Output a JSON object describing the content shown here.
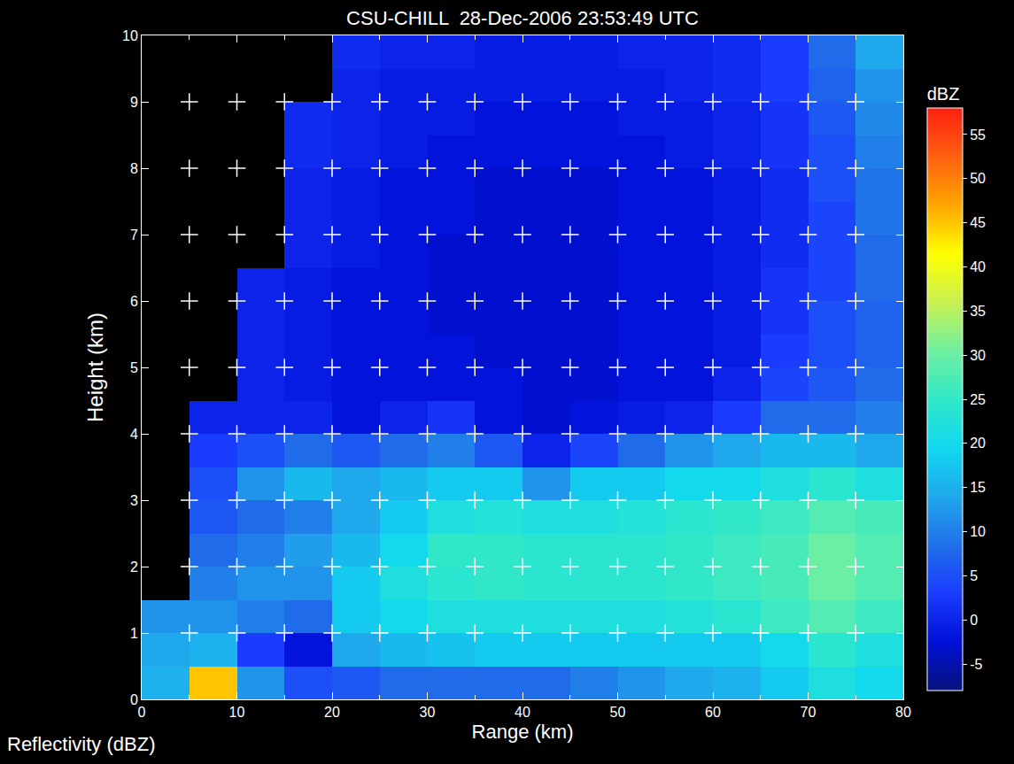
{
  "chart_data": {
    "type": "heatmap",
    "title": "CSU-CHILL  28-Dec-2006 23:53:49 UTC",
    "annotations": [
      "Reflectivity (dBZ)"
    ],
    "x_label": "Range (km)",
    "y_label": "Height (km)",
    "x": [
      2.5,
      7.5,
      12.5,
      17.5,
      22.5,
      27.5,
      32.5,
      37.5,
      42.5,
      47.5,
      52.5,
      57.5,
      62.5,
      67.5,
      72.5,
      77.5
    ],
    "y": [
      0.25,
      0.75,
      1.25,
      1.75,
      2.25,
      2.75,
      3.25,
      3.75,
      4.25,
      4.75,
      5.25,
      5.75,
      6.25,
      6.75,
      7.25,
      7.75,
      8.25,
      8.75,
      9.25,
      9.75
    ],
    "values": [
      [
        15,
        45,
        12,
        5,
        6,
        8,
        8,
        8,
        8,
        10,
        12,
        14,
        15,
        18,
        22,
        20
      ],
      [
        14,
        15,
        3,
        -2,
        14,
        16,
        17,
        18,
        18,
        18,
        18,
        18,
        18,
        20,
        24,
        22
      ],
      [
        12,
        12,
        10,
        8,
        18,
        20,
        22,
        22,
        22,
        22,
        22,
        23,
        24,
        26,
        28,
        26
      ],
      [
        null,
        10,
        12,
        12,
        18,
        22,
        24,
        25,
        24,
        24,
        24,
        25,
        26,
        27,
        30,
        28
      ],
      [
        null,
        8,
        10,
        13,
        16,
        20,
        25,
        25,
        24,
        24,
        24,
        25,
        26,
        27,
        30,
        28
      ],
      [
        null,
        6,
        8,
        10,
        14,
        18,
        22,
        23,
        22,
        22,
        23,
        24,
        25,
        26,
        28,
        27
      ],
      [
        null,
        5,
        12,
        16,
        14,
        16,
        18,
        18,
        12,
        18,
        18,
        20,
        20,
        22,
        24,
        22
      ],
      [
        null,
        3,
        5,
        8,
        6,
        8,
        10,
        6,
        0,
        4,
        8,
        12,
        14,
        16,
        16,
        14
      ],
      [
        null,
        0,
        0,
        0,
        -2,
        0,
        2,
        -2,
        -3,
        -2,
        -1,
        0,
        3,
        8,
        8,
        10
      ],
      [
        null,
        null,
        0,
        -1,
        -2,
        -2,
        -2,
        -2,
        -3,
        -3,
        -2,
        -2,
        0,
        4,
        6,
        8
      ],
      [
        null,
        null,
        0,
        -1,
        -2,
        -2,
        -2,
        -3,
        -3,
        -3,
        -2,
        -2,
        -1,
        3,
        5,
        7
      ],
      [
        null,
        null,
        0,
        -1,
        -2,
        -2,
        -3,
        -3,
        -3,
        -3,
        -2,
        -2,
        -1,
        2,
        5,
        7
      ],
      [
        null,
        null,
        0,
        -1,
        -2,
        -2,
        -3,
        -3,
        -3,
        -3,
        -2,
        -2,
        -1,
        2,
        4,
        8
      ],
      [
        null,
        null,
        null,
        0,
        -1,
        -2,
        -3,
        -3,
        -3,
        -3,
        -2,
        -2,
        -1,
        1,
        4,
        8
      ],
      [
        null,
        null,
        null,
        0,
        -1,
        -2,
        -2,
        -3,
        -3,
        -3,
        -2,
        -2,
        -1,
        1,
        4,
        9
      ],
      [
        null,
        null,
        null,
        0,
        -1,
        -2,
        -2,
        -3,
        -3,
        -3,
        -2,
        -2,
        -1,
        1,
        5,
        9
      ],
      [
        null,
        null,
        null,
        1,
        0,
        -1,
        -2,
        -2,
        -2,
        -2,
        -2,
        -1,
        0,
        2,
        5,
        10
      ],
      [
        null,
        null,
        null,
        1,
        0,
        -1,
        -1,
        -2,
        -2,
        -2,
        -1,
        -1,
        0,
        2,
        6,
        11
      ],
      [
        null,
        null,
        null,
        null,
        0,
        -1,
        -1,
        -1,
        -1,
        -1,
        -1,
        0,
        1,
        3,
        7,
        12
      ],
      [
        null,
        null,
        null,
        null,
        1,
        0,
        0,
        -1,
        -1,
        -1,
        0,
        0,
        1,
        3,
        8,
        14
      ]
    ],
    "xlim": [
      0,
      80
    ],
    "xticks": [
      0,
      10,
      20,
      30,
      40,
      50,
      60,
      70,
      80
    ],
    "ylim": [
      0,
      10
    ],
    "yticks": [
      0,
      1,
      2,
      3,
      4,
      5,
      6,
      7,
      8,
      9,
      10
    ],
    "colorbar": {
      "title": "dBZ",
      "range": [
        -8,
        58
      ],
      "ticks": [
        -5,
        0,
        5,
        10,
        15,
        20,
        25,
        30,
        35,
        40,
        45,
        50,
        55
      ]
    },
    "grid": true
  }
}
